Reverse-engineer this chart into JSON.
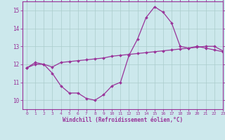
{
  "x": [
    0,
    1,
    2,
    3,
    4,
    5,
    6,
    7,
    8,
    9,
    10,
    11,
    12,
    13,
    14,
    15,
    16,
    17,
    18,
    19,
    20,
    21,
    22,
    23
  ],
  "windchill": [
    11.8,
    12.1,
    12.0,
    11.5,
    10.8,
    10.4,
    10.4,
    10.1,
    10.0,
    10.3,
    10.8,
    11.0,
    12.5,
    13.4,
    14.6,
    15.2,
    14.9,
    14.3,
    13.0,
    12.9,
    13.0,
    12.9,
    12.8,
    12.7
  ],
  "smooth": [
    11.8,
    12.0,
    12.0,
    11.85,
    12.1,
    12.15,
    12.2,
    12.25,
    12.3,
    12.35,
    12.45,
    12.5,
    12.55,
    12.6,
    12.65,
    12.7,
    12.75,
    12.8,
    12.85,
    12.9,
    12.95,
    13.0,
    13.0,
    12.75
  ],
  "line_color": "#993399",
  "bg_color": "#cce8ec",
  "grid_color": "#aacccc",
  "xlabel": "Windchill (Refroidissement éolien,°C)",
  "ylim": [
    9.5,
    15.5
  ],
  "xlim": [
    -0.5,
    23
  ],
  "yticks": [
    10,
    11,
    12,
    13,
    14,
    15
  ],
  "xticks": [
    0,
    1,
    2,
    3,
    4,
    5,
    6,
    7,
    8,
    9,
    10,
    11,
    12,
    13,
    14,
    15,
    16,
    17,
    18,
    19,
    20,
    21,
    22,
    23
  ]
}
